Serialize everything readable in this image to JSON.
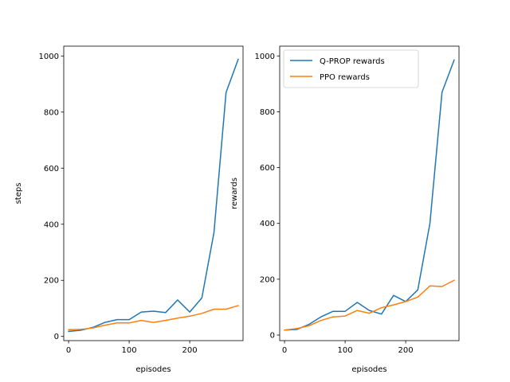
{
  "chart_data": [
    {
      "type": "line",
      "xlabel": "episodes",
      "ylabel": "steps",
      "xlim": [
        -8,
        288
      ],
      "ylim": [
        -15,
        1035
      ],
      "xticks": [
        0,
        100,
        200
      ],
      "yticks": [
        0,
        200,
        400,
        600,
        800,
        1000
      ],
      "legend": false,
      "series": [
        {
          "color": "#1f77b4",
          "x": [
            0,
            20,
            40,
            60,
            80,
            100,
            120,
            140,
            160,
            180,
            200,
            220,
            240,
            260,
            280
          ],
          "y": [
            18,
            22,
            32,
            50,
            60,
            60,
            87,
            90,
            85,
            130,
            87,
            137,
            370,
            870,
            988
          ]
        },
        {
          "color": "#ff7f0e",
          "x": [
            0,
            20,
            40,
            60,
            80,
            100,
            120,
            140,
            160,
            180,
            200,
            220,
            240,
            260,
            280
          ],
          "y": [
            24,
            25,
            30,
            40,
            48,
            48,
            57,
            50,
            57,
            65,
            72,
            82,
            97,
            97,
            110
          ]
        }
      ]
    },
    {
      "type": "line",
      "xlabel": "episodes",
      "ylabel": "rewards",
      "xlim": [
        -8,
        288
      ],
      "ylim": [
        -20,
        1035
      ],
      "xticks": [
        0,
        100,
        200
      ],
      "yticks": [
        0,
        200,
        400,
        600,
        800,
        1000
      ],
      "legend": true,
      "legend_position": "upper-left",
      "series": [
        {
          "name": "Q-PROP rewards",
          "color": "#1f77b4",
          "x": [
            0,
            20,
            40,
            60,
            80,
            100,
            120,
            140,
            160,
            180,
            200,
            220,
            240,
            260,
            280
          ],
          "y": [
            18,
            20,
            38,
            65,
            85,
            85,
            117,
            88,
            75,
            142,
            120,
            162,
            400,
            870,
            985
          ]
        },
        {
          "name": "PPO rewards",
          "color": "#ff7f0e",
          "x": [
            0,
            20,
            40,
            60,
            80,
            100,
            120,
            140,
            160,
            180,
            200,
            220,
            240,
            260,
            280
          ],
          "y": [
            18,
            23,
            33,
            52,
            65,
            68,
            88,
            78,
            98,
            108,
            120,
            136,
            176,
            174,
            196
          ]
        }
      ]
    }
  ]
}
